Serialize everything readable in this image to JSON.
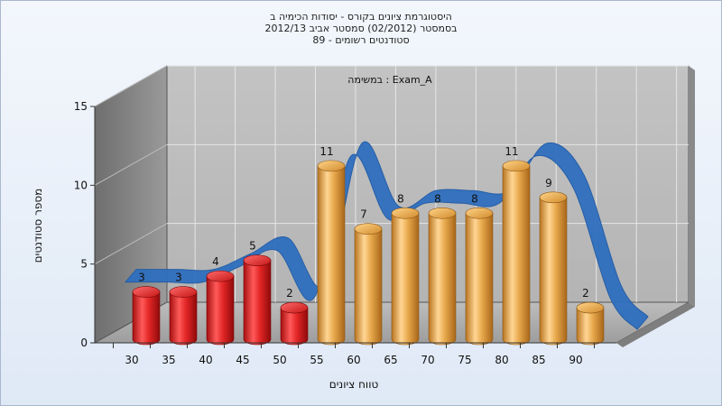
{
  "chart_data": {
    "type": "bar",
    "title_lines": [
      "היסטוגרמת ציונים בקורס - יסודות הכימיה ב",
      "בסמסטר  (02/2012)  סמסטר אביב 2012/13",
      "סטודנטים רשומים - 89"
    ],
    "annotation": "Exam_A : במשימה",
    "xlabel": "טווח ציונים",
    "ylabel": "מספר סטודנטים",
    "categories": [
      "30",
      "35",
      "40",
      "45",
      "50",
      "55",
      "60",
      "65",
      "70",
      "75",
      "80",
      "85",
      "90"
    ],
    "values": [
      3,
      3,
      4,
      5,
      2,
      11,
      7,
      8,
      8,
      8,
      11,
      9,
      2
    ],
    "bar_colors": [
      "#e12a2a",
      "#e12a2a",
      "#e12a2a",
      "#e12a2a",
      "#e12a2a",
      "#e2a042",
      "#e2a042",
      "#e2a042",
      "#e2a042",
      "#e2a042",
      "#e2a042",
      "#e2a042",
      "#e2a042"
    ],
    "y_ticks": [
      0,
      5,
      10,
      15
    ],
    "ylim": [
      0,
      15
    ],
    "grid": true,
    "smooth_curve_color": "#2f6fbf"
  }
}
